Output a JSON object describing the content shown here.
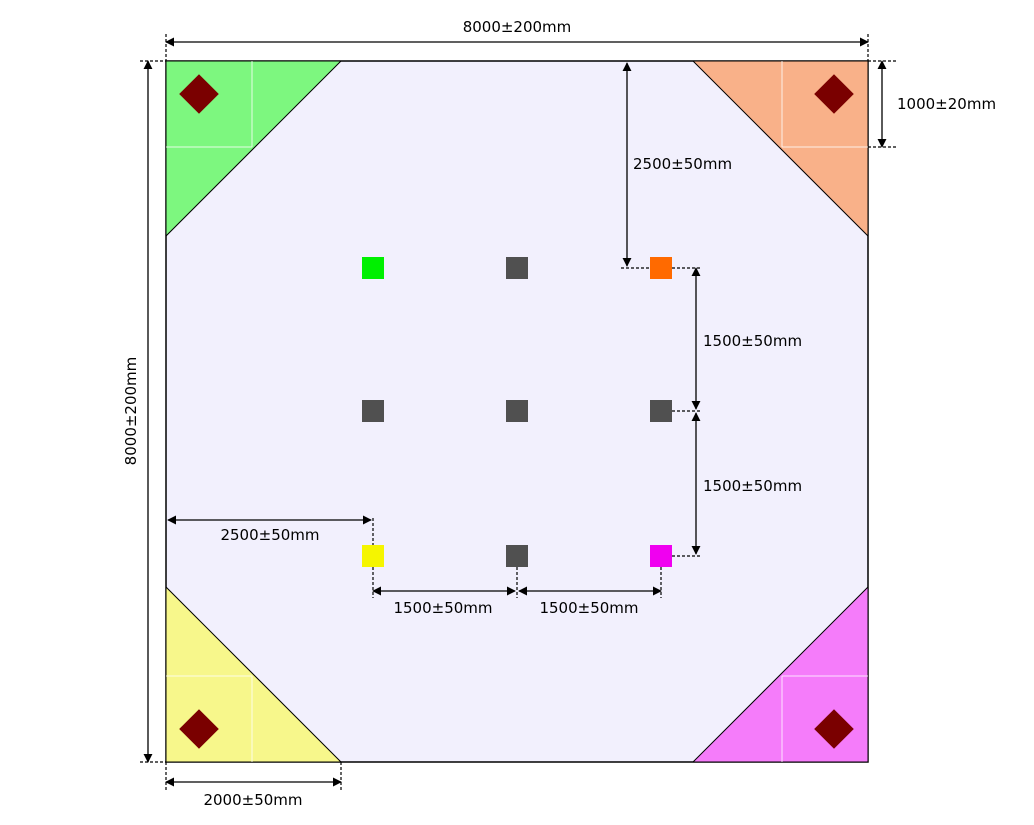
{
  "dimensions": {
    "field_width": "8000±200mm",
    "field_height": "8000±200mm",
    "corner_inset": "1000±20mm",
    "top_to_first_row": "2500±50mm",
    "row_gap_upper": "1500±50mm",
    "row_gap_lower": "1500±50mm",
    "left_to_first_column": "2500±50mm",
    "column_gap_left": "1500±50mm",
    "column_gap_right": "1500±50mm",
    "corner_zone_size": "2000±50mm"
  },
  "colors": {
    "field_background": "#f2f0fd",
    "corner_top_left": "#7df77f",
    "corner_top_right": "#f9b189",
    "corner_bottom_left": "#f7f78b",
    "corner_bottom_right": "#f57cfa",
    "corner_marker": "#7a0000",
    "marker_green": "#00f000",
    "marker_orange": "#ff6a00",
    "marker_yellow": "#f5f500",
    "marker_magenta": "#f000f0",
    "marker_gray": "#505050"
  }
}
